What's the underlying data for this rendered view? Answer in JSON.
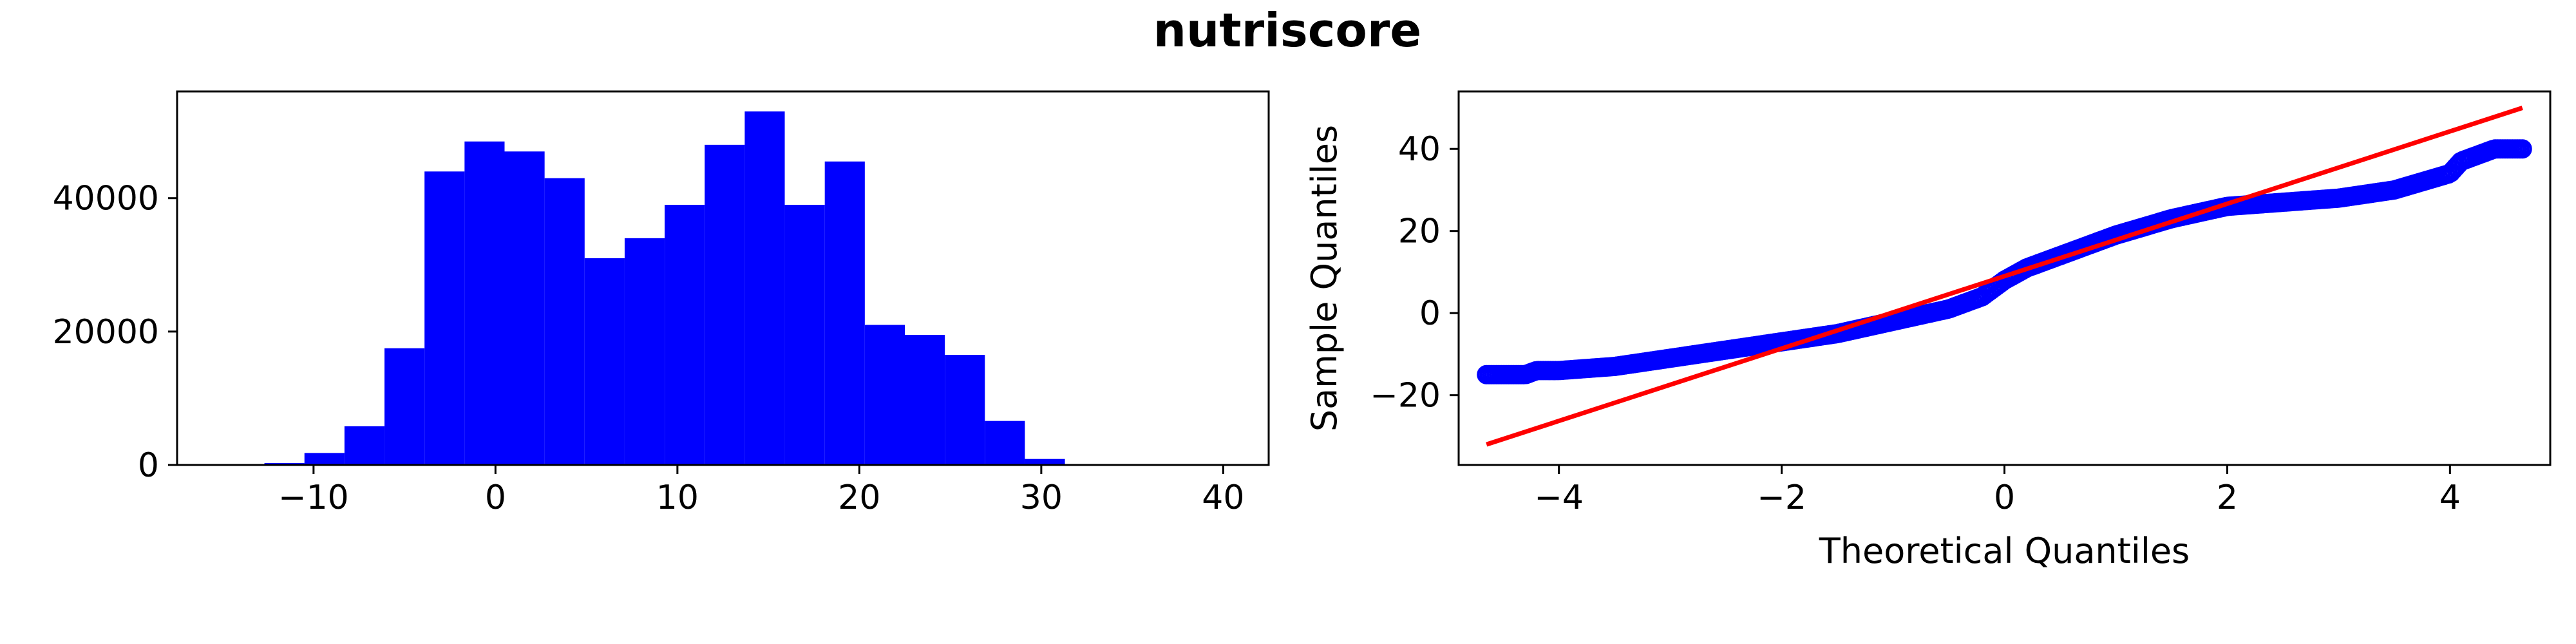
{
  "figure": {
    "title": "nutriscore"
  },
  "chart_data": [
    {
      "type": "bar",
      "subtype": "histogram",
      "color": "#0000ff",
      "xlim": [
        -17.5,
        42.5
      ],
      "ylim": [
        0,
        56000
      ],
      "xticks": [
        -10,
        0,
        10,
        20,
        30,
        40
      ],
      "yticks": [
        0,
        20000,
        40000
      ],
      "xlabel": "",
      "ylabel": "",
      "bin_edges": [
        -12.7,
        -10.5,
        -8.3,
        -6.1,
        -3.9,
        -1.7,
        0.5,
        2.7,
        4.9,
        7.1,
        9.3,
        11.5,
        13.7,
        15.9,
        18.1,
        20.3,
        22.5,
        24.7,
        26.9,
        29.1,
        31.3,
        33.5,
        35.7,
        37.9,
        40.1
      ],
      "counts": [
        300,
        1800,
        5800,
        17500,
        44000,
        48500,
        47000,
        43000,
        31000,
        34000,
        39000,
        48000,
        53000,
        39000,
        45500,
        21000,
        19500,
        16500,
        6600,
        900,
        40,
        15,
        8,
        5
      ]
    },
    {
      "type": "scatter",
      "subtype": "qq-plot",
      "xlabel": "Theoretical Quantiles",
      "ylabel": "Sample Quantiles",
      "xlim": [
        -4.9,
        4.9
      ],
      "ylim": [
        -37,
        54
      ],
      "xticks": [
        -4,
        -2,
        0,
        2,
        4
      ],
      "yticks": [
        -20,
        0,
        20,
        40
      ],
      "points_color": "#0000ff",
      "line_color": "#ff0000",
      "reference_line": {
        "x": [
          -4.65,
          4.65
        ],
        "y": [
          -32,
          50
        ]
      },
      "quantiles": {
        "x": [
          -4.65,
          -4.5,
          -4.4,
          -4.3,
          -4.2,
          -4.0,
          -3.5,
          -3.0,
          -2.5,
          -2.0,
          -1.5,
          -1.0,
          -0.5,
          -0.2,
          0.0,
          0.2,
          0.5,
          1.0,
          1.5,
          2.0,
          2.5,
          3.0,
          3.5,
          4.0,
          4.1,
          4.2,
          4.3,
          4.4,
          4.5,
          4.65
        ],
        "y": [
          -15,
          -15,
          -15,
          -15,
          -14,
          -14,
          -13,
          -11,
          -9,
          -7,
          -5,
          -2,
          1,
          4,
          8,
          11,
          14,
          19,
          23,
          26,
          27,
          28,
          30,
          34,
          37,
          38,
          39,
          40,
          40,
          40
        ]
      }
    }
  ]
}
